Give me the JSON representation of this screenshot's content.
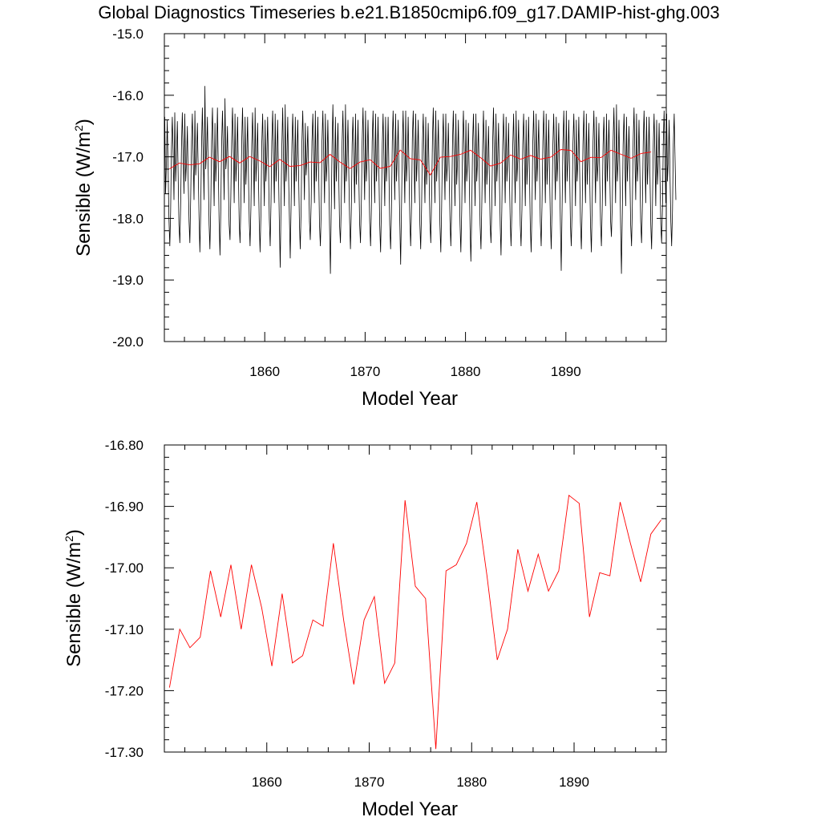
{
  "title": "Global Diagnostics Timeseries b.e21.B1850cmip6.f09_g17.DAMIP-hist-ghg.003",
  "chart_data": [
    {
      "type": "line",
      "panel": "monthly and annual mean",
      "xlabel": "Model Year",
      "ylabel_main": "Sensible (W/m",
      "ylabel_sup": "2",
      "ylabel_end": ")",
      "xlim": [
        1850,
        1900
      ],
      "ylim": [
        -20.0,
        -15.0
      ],
      "xticks": [
        1860,
        1870,
        1880,
        1890
      ],
      "xtick_labels": [
        "1860",
        "1870",
        "1880",
        "1890"
      ],
      "yticks": [
        -20.0,
        -19.0,
        -18.0,
        -17.0,
        -16.0,
        -15.0
      ],
      "ytick_labels": [
        "-20.0",
        "-19.0",
        "-18.0",
        "-17.0",
        "-16.0",
        "-15.0"
      ],
      "series": [
        {
          "color": "#000000",
          "x_start": 1850.04,
          "x_step": 0.08333,
          "values": [
            -16.35,
            -17.6,
            -17.1,
            -16.4,
            -17.2,
            -18.0,
            -18.45,
            -17.9,
            -16.9,
            -16.35,
            -16.9,
            -17.7,
            -16.28,
            -17.4,
            -17.0,
            -16.42,
            -17.3,
            -18.1,
            -18.4,
            -17.8,
            -16.8,
            -16.28,
            -16.95,
            -17.6,
            -16.3,
            -17.4,
            -17.1,
            -16.5,
            -17.35,
            -18.05,
            -18.4,
            -17.7,
            -16.75,
            -16.3,
            -17.05,
            -17.7,
            -16.25,
            -17.3,
            -17.0,
            -16.45,
            -17.2,
            -18.0,
            -18.55,
            -17.85,
            -16.8,
            -16.2,
            -16.95,
            -17.7,
            -15.85,
            -17.2,
            -16.9,
            -16.35,
            -17.3,
            -18.1,
            -18.5,
            -17.8,
            -16.75,
            -16.2,
            -17.0,
            -17.8,
            -16.45,
            -17.4,
            -16.95,
            -16.2,
            -17.2,
            -18.05,
            -18.6,
            -17.85,
            -16.8,
            -16.25,
            -16.9,
            -17.7,
            -16.05,
            -17.2,
            -17.0,
            -16.5,
            -17.4,
            -18.1,
            -18.35,
            -17.65,
            -16.7,
            -16.2,
            -16.95,
            -17.75,
            -16.3,
            -17.4,
            -17.05,
            -16.35,
            -17.2,
            -18.1,
            -18.4,
            -17.8,
            -16.75,
            -16.2,
            -16.95,
            -17.75,
            -16.35,
            -17.45,
            -17.05,
            -16.35,
            -17.25,
            -18.05,
            -18.45,
            -17.8,
            -16.8,
            -16.28,
            -17.0,
            -17.8,
            -16.2,
            -17.4,
            -17.0,
            -16.45,
            -17.3,
            -18.1,
            -18.55,
            -17.9,
            -16.8,
            -16.3,
            -17.05,
            -17.8,
            -16.4,
            -17.4,
            -17.0,
            -16.35,
            -17.2,
            -18.0,
            -18.45,
            -17.75,
            -16.75,
            -16.25,
            -17.0,
            -17.75,
            -16.3,
            -17.4,
            -17.05,
            -16.4,
            -17.25,
            -18.05,
            -18.8,
            -17.8,
            -16.8,
            -16.2,
            -17.0,
            -17.8,
            -16.15,
            -17.4,
            -17.05,
            -16.35,
            -17.3,
            -18.0,
            -18.65,
            -17.85,
            -16.8,
            -16.3,
            -16.95,
            -17.8,
            -16.35,
            -17.4,
            -17.0,
            -16.4,
            -17.25,
            -18.1,
            -18.5,
            -17.85,
            -16.75,
            -16.25,
            -16.95,
            -17.7,
            -16.45,
            -17.3,
            -17.0,
            -16.5,
            -17.25,
            -18.05,
            -18.35,
            -17.75,
            -16.75,
            -16.3,
            -17.0,
            -17.75,
            -16.25,
            -17.4,
            -17.05,
            -16.35,
            -17.25,
            -18.1,
            -18.45,
            -17.9,
            -16.75,
            -16.25,
            -16.95,
            -17.75,
            -16.3,
            -17.4,
            -17.1,
            -16.4,
            -17.25,
            -18.1,
            -18.9,
            -17.9,
            -16.8,
            -16.15,
            -17.0,
            -17.85,
            -16.35,
            -17.4,
            -17.0,
            -16.45,
            -17.3,
            -18.1,
            -18.4,
            -17.8,
            -16.75,
            -16.25,
            -17.0,
            -17.75,
            -16.15,
            -17.4,
            -17.05,
            -16.4,
            -17.25,
            -18.05,
            -18.5,
            -17.85,
            -16.8,
            -16.35,
            -17.0,
            -17.75,
            -16.3,
            -17.45,
            -17.05,
            -16.4,
            -17.3,
            -18.1,
            -18.4,
            -17.75,
            -16.75,
            -16.2,
            -16.95,
            -17.7,
            -16.25,
            -17.4,
            -17.0,
            -16.4,
            -17.25,
            -18.05,
            -18.45,
            -17.85,
            -16.75,
            -16.25,
            -17.0,
            -17.75,
            -16.3,
            -17.4,
            -17.05,
            -16.35,
            -17.25,
            -18.1,
            -18.55,
            -17.85,
            -16.8,
            -16.3,
            -17.0,
            -17.8,
            -16.35,
            -17.4,
            -17.05,
            -16.35,
            -17.25,
            -18.1,
            -18.5,
            -17.9,
            -16.75,
            -16.25,
            -16.95,
            -17.7,
            -16.3,
            -17.4,
            -17.05,
            -16.4,
            -17.3,
            -18.1,
            -18.75,
            -17.8,
            -16.8,
            -16.25,
            -17.0,
            -17.75,
            -16.25,
            -17.4,
            -17.0,
            -16.35,
            -17.2,
            -18.05,
            -18.45,
            -17.8,
            -16.7,
            -16.25,
            -16.95,
            -17.75,
            -16.3,
            -17.4,
            -17.0,
            -16.4,
            -17.3,
            -18.1,
            -18.5,
            -17.85,
            -16.8,
            -16.3,
            -17.0,
            -17.75,
            -16.35,
            -17.45,
            -17.05,
            -16.45,
            -17.3,
            -18.05,
            -18.4,
            -17.7,
            -16.7,
            -16.2,
            -16.95,
            -17.75,
            -16.25,
            -17.4,
            -17.05,
            -16.4,
            -17.25,
            -18.1,
            -18.55,
            -17.85,
            -16.8,
            -16.3,
            -17.0,
            -17.7,
            -16.3,
            -17.4,
            -17.1,
            -16.45,
            -17.25,
            -18.05,
            -18.45,
            -17.85,
            -16.75,
            -16.25,
            -17.05,
            -17.8,
            -16.3,
            -17.45,
            -17.05,
            -16.4,
            -17.3,
            -18.1,
            -18.55,
            -17.85,
            -16.8,
            -16.25,
            -16.95,
            -17.75,
            -16.4,
            -17.4,
            -17.1,
            -16.45,
            -17.35,
            -18.15,
            -18.7,
            -17.9,
            -16.8,
            -16.3,
            -17.0,
            -17.8,
            -16.3,
            -17.4,
            -17.05,
            -16.45,
            -17.3,
            -18.1,
            -18.5,
            -17.8,
            -16.8,
            -16.25,
            -16.95,
            -17.75,
            -16.4,
            -17.45,
            -17.1,
            -16.5,
            -17.3,
            -18.1,
            -18.4,
            -17.8,
            -16.75,
            -16.2,
            -17.0,
            -17.8,
            -16.3,
            -17.4,
            -17.05,
            -16.45,
            -17.3,
            -18.1,
            -18.6,
            -17.85,
            -16.8,
            -16.3,
            -16.95,
            -17.75,
            -16.35,
            -17.4,
            -17.05,
            -16.45,
            -17.3,
            -18.05,
            -18.45,
            -17.85,
            -16.85,
            -16.3,
            -17.0,
            -17.75,
            -16.25,
            -17.4,
            -17.05,
            -16.4,
            -17.25,
            -18.1,
            -18.45,
            -17.85,
            -16.8,
            -16.3,
            -17.0,
            -17.8,
            -16.4,
            -17.45,
            -17.05,
            -16.35,
            -17.3,
            -18.1,
            -18.55,
            -17.85,
            -16.8,
            -16.25,
            -16.95,
            -17.7,
            -16.3,
            -17.4,
            -17.0,
            -16.4,
            -17.25,
            -18.05,
            -18.45,
            -17.8,
            -16.75,
            -16.25,
            -16.95,
            -17.75,
            -16.3,
            -17.45,
            -17.05,
            -16.4,
            -17.25,
            -18.05,
            -18.5,
            -17.85,
            -16.8,
            -16.3,
            -17.0,
            -17.7,
            -16.35,
            -17.4,
            -17.05,
            -16.45,
            -17.3,
            -18.1,
            -18.85,
            -17.8,
            -16.8,
            -16.25,
            -17.0,
            -17.75,
            -16.25,
            -17.4,
            -17.05,
            -16.4,
            -17.25,
            -18.1,
            -18.45,
            -17.85,
            -16.8,
            -16.3,
            -16.95,
            -17.8,
            -16.4,
            -17.4,
            -17.05,
            -16.35,
            -17.25,
            -18.05,
            -18.5,
            -17.85,
            -16.8,
            -16.25,
            -17.0,
            -17.75,
            -16.3,
            -17.45,
            -17.05,
            -16.45,
            -17.3,
            -18.1,
            -18.55,
            -17.8,
            -16.75,
            -16.25,
            -17.0,
            -17.75,
            -16.35,
            -17.4,
            -17.1,
            -16.45,
            -17.35,
            -18.1,
            -18.45,
            -17.85,
            -16.8,
            -16.35,
            -17.05,
            -17.8,
            -16.3,
            -17.4,
            -17.0,
            -16.4,
            -17.25,
            -18.05,
            -18.3,
            -17.75,
            -16.75,
            -16.2,
            -16.95,
            -17.75,
            -16.15,
            -17.4,
            -17.05,
            -16.4,
            -17.3,
            -18.15,
            -18.9,
            -17.9,
            -16.8,
            -16.3,
            -16.95,
            -17.8,
            -16.35,
            -17.4,
            -17.0,
            -16.5,
            -17.3,
            -18.1,
            -18.45,
            -17.8,
            -16.75,
            -16.2,
            -16.95,
            -17.7,
            -16.3,
            -17.4,
            -17.05,
            -16.4,
            -17.25,
            -18.05,
            -18.4,
            -17.8,
            -16.75,
            -16.25,
            -17.0,
            -17.75,
            -16.35,
            -17.45,
            -17.05,
            -16.35,
            -17.25,
            -18.1,
            -18.5,
            -17.85,
            -16.8,
            -16.3,
            -17.0,
            -17.8,
            -16.4,
            -17.45,
            -17.1,
            -16.45,
            -17.3,
            -18.1,
            -18.4,
            -17.8,
            -16.75,
            -16.25,
            -17.0,
            -17.75,
            -16.3,
            -17.4,
            -17.05,
            -16.4,
            -17.25,
            -18.05,
            -18.45,
            -17.85,
            -16.8,
            -16.3,
            -17.0,
            -17.7
          ]
        },
        {
          "color": "#ff0000",
          "x": [
            1850.5,
            1851.5,
            1852.5,
            1853.5,
            1854.5,
            1855.5,
            1856.5,
            1857.5,
            1858.5,
            1859.5,
            1860.5,
            1861.5,
            1862.5,
            1863.5,
            1864.5,
            1865.5,
            1866.5,
            1867.5,
            1868.5,
            1869.5,
            1870.5,
            1871.5,
            1872.5,
            1873.5,
            1874.5,
            1875.5,
            1876.5,
            1877.5,
            1878.5,
            1879.5,
            1880.5,
            1881.5,
            1882.5,
            1883.5,
            1884.5,
            1885.5,
            1886.5,
            1887.5,
            1888.5,
            1889.5,
            1890.5,
            1891.5,
            1892.5,
            1893.5,
            1894.5,
            1895.5,
            1896.5,
            1897.5,
            1898.5
          ],
          "values": [
            -17.195,
            -17.1,
            -17.13,
            -17.113,
            -17.005,
            -17.08,
            -16.995,
            -17.1,
            -16.995,
            -17.065,
            -17.16,
            -17.042,
            -17.155,
            -17.143,
            -17.085,
            -17.095,
            -16.96,
            -17.085,
            -17.19,
            -17.085,
            -17.047,
            -17.188,
            -17.155,
            -16.89,
            -17.03,
            -17.05,
            -17.295,
            -17.005,
            -16.995,
            -16.96,
            -16.893,
            -17.013,
            -17.15,
            -17.1,
            -16.97,
            -17.038,
            -16.978,
            -17.038,
            -17.005,
            -16.882,
            -16.895,
            -17.08,
            -17.008,
            -17.013,
            -16.893,
            -16.96,
            -17.023,
            -16.945,
            -16.922
          ]
        }
      ]
    },
    {
      "type": "line",
      "panel": "annual mean",
      "xlabel": "Model Year",
      "ylabel_main": "Sensible (W/m",
      "ylabel_sup": "2",
      "ylabel_end": ")",
      "xlim": [
        1850,
        1899
      ],
      "ylim": [
        -17.3,
        -16.8
      ],
      "xticks": [
        1860,
        1870,
        1880,
        1890
      ],
      "xtick_labels": [
        "1860",
        "1870",
        "1880",
        "1890"
      ],
      "yticks": [
        -17.3,
        -17.2,
        -17.1,
        -17.0,
        -16.9,
        -16.8
      ],
      "ytick_labels": [
        "-17.30",
        "-17.20",
        "-17.10",
        "-17.00",
        "-16.90",
        "-16.80"
      ],
      "series": [
        {
          "color": "#ff0000",
          "x": [
            1850.5,
            1851.5,
            1852.5,
            1853.5,
            1854.5,
            1855.5,
            1856.5,
            1857.5,
            1858.5,
            1859.5,
            1860.5,
            1861.5,
            1862.5,
            1863.5,
            1864.5,
            1865.5,
            1866.5,
            1867.5,
            1868.5,
            1869.5,
            1870.5,
            1871.5,
            1872.5,
            1873.5,
            1874.5,
            1875.5,
            1876.5,
            1877.5,
            1878.5,
            1879.5,
            1880.5,
            1881.5,
            1882.5,
            1883.5,
            1884.5,
            1885.5,
            1886.5,
            1887.5,
            1888.5,
            1889.5,
            1890.5,
            1891.5,
            1892.5,
            1893.5,
            1894.5,
            1895.5,
            1896.5,
            1897.5,
            1898.5
          ],
          "values": [
            -17.195,
            -17.1,
            -17.13,
            -17.113,
            -17.005,
            -17.08,
            -16.995,
            -17.1,
            -16.995,
            -17.065,
            -17.16,
            -17.042,
            -17.155,
            -17.143,
            -17.085,
            -17.095,
            -16.96,
            -17.085,
            -17.19,
            -17.085,
            -17.047,
            -17.188,
            -17.155,
            -16.89,
            -17.03,
            -17.05,
            -17.295,
            -17.005,
            -16.995,
            -16.96,
            -16.893,
            -17.013,
            -17.15,
            -17.1,
            -16.97,
            -17.038,
            -16.978,
            -17.038,
            -17.005,
            -16.882,
            -16.895,
            -17.08,
            -17.008,
            -17.013,
            -16.893,
            -16.96,
            -17.023,
            -16.945,
            -16.922
          ]
        }
      ]
    }
  ]
}
